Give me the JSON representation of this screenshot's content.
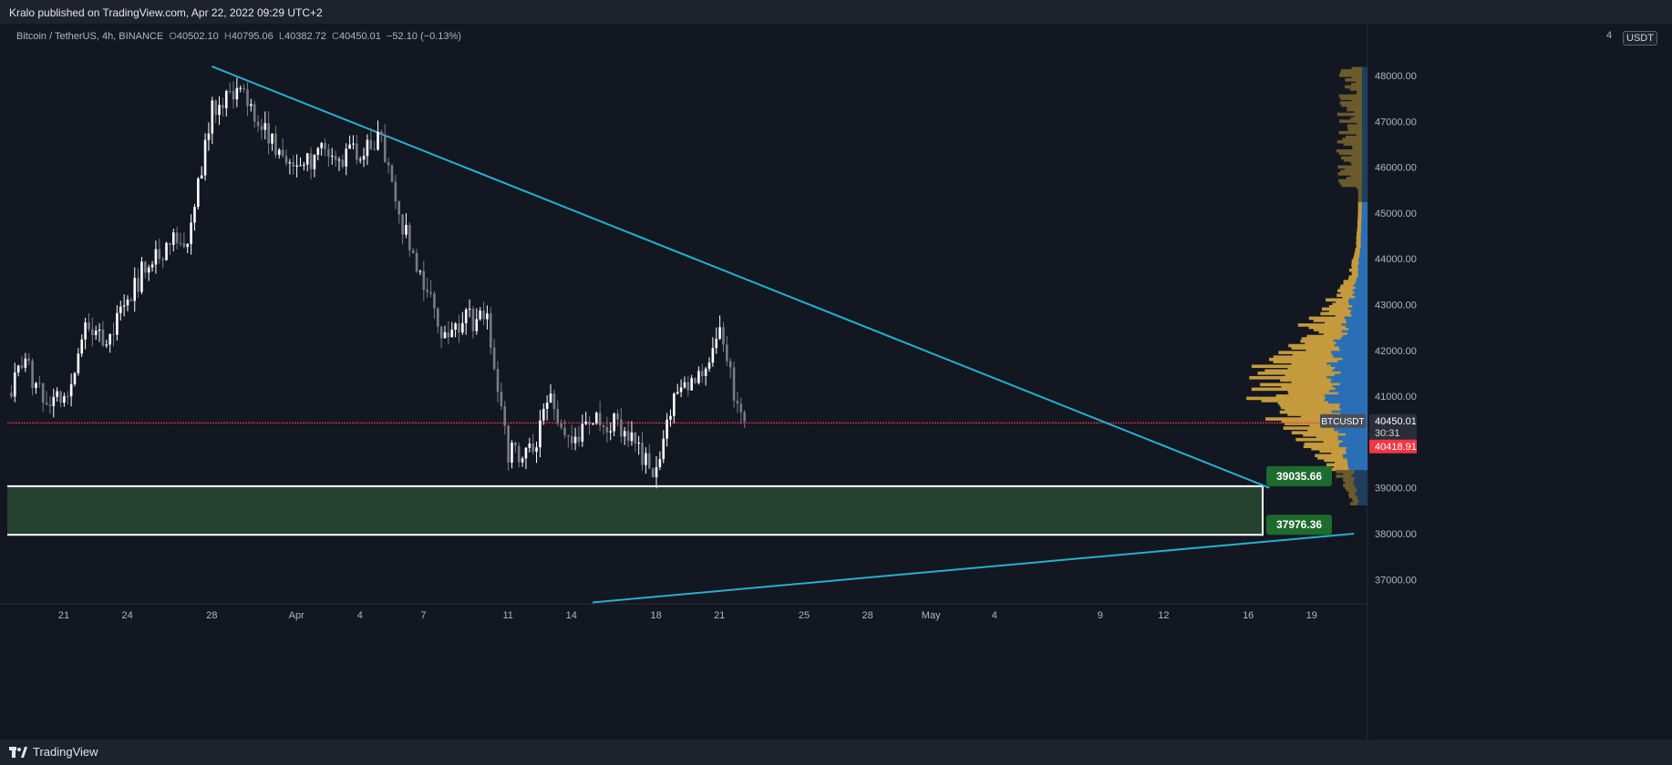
{
  "header": {
    "published": "Kralo published on TradingView.com, Apr 22, 2022 09:29 UTC+2"
  },
  "footer": {
    "brand": "TradingView",
    "brand_icon": "tradingview-logo-icon"
  },
  "legend": {
    "symbol": "Bitcoin / TetherUS, 4h, BINANCE",
    "open_label": "O",
    "open": "40502.10",
    "high_label": "H",
    "high": "40795.06",
    "low_label": "L",
    "low": "40382.72",
    "close_label": "C",
    "close": "40450.01",
    "change": "−52.10 (−0.13%)"
  },
  "price_axis": {
    "currency": "USDT",
    "top_partial": "4",
    "ticks": [
      "48000.00",
      "47000.00",
      "46000.00",
      "45000.00",
      "44000.00",
      "43000.00",
      "42000.00",
      "41000.00",
      "40000.00",
      "39000.00",
      "38000.00",
      "37000.00"
    ]
  },
  "time_axis": {
    "ticks": [
      "21",
      "24",
      "28",
      "Apr",
      "4",
      "7",
      "11",
      "14",
      "18",
      "21",
      "25",
      "28",
      "May",
      "4",
      "9",
      "12",
      "16",
      "19"
    ]
  },
  "labels": {
    "symbol_tag": "BTCUSDT",
    "last_price": "40450.01",
    "countdown": "30:31",
    "red_price": "40418.91",
    "zone_top": "39035.66",
    "zone_bottom": "37976.36"
  },
  "colors": {
    "background": "#131722",
    "candle_up": "#ffffff",
    "candle_down": "#787b86",
    "trendline": "#26b0d0",
    "support_line": "#f23645",
    "zone_fill": "#24422f",
    "zone_label": "#1e6b2e",
    "vp_up": "#c49a3c",
    "vp_down": "#2a6fb5"
  },
  "chart_data": {
    "type": "candlestick",
    "timeframe": "4h",
    "x_range": [
      "Mar 18 2022",
      "May 21 2022"
    ],
    "ylim": [
      36500,
      48500
    ],
    "price_path": [
      [
        "2022-03-18",
        40300
      ],
      [
        "2022-03-19",
        41800
      ],
      [
        "2022-03-20",
        41100
      ],
      [
        "2022-03-21",
        40800
      ],
      [
        "2022-03-22",
        42600
      ],
      [
        "2022-03-23",
        42300
      ],
      [
        "2022-03-24",
        43000
      ],
      [
        "2022-03-25",
        44000
      ],
      [
        "2022-03-26",
        44300
      ],
      [
        "2022-03-27",
        44600
      ],
      [
        "2022-03-28",
        47200
      ],
      [
        "2022-03-29",
        47700
      ],
      [
        "2022-03-30",
        47200
      ],
      [
        "2022-03-31",
        46500
      ],
      [
        "2022-04-01",
        45800
      ],
      [
        "2022-04-02",
        46300
      ],
      [
        "2022-04-03",
        46200
      ],
      [
        "2022-04-04",
        46400
      ],
      [
        "2022-04-05",
        46700
      ],
      [
        "2022-04-06",
        44800
      ],
      [
        "2022-04-07",
        43400
      ],
      [
        "2022-04-08",
        42300
      ],
      [
        "2022-04-09",
        42700
      ],
      [
        "2022-04-10",
        42600
      ],
      [
        "2022-04-11",
        39800
      ],
      [
        "2022-04-12",
        39700
      ],
      [
        "2022-04-13",
        40900
      ],
      [
        "2022-04-14",
        39900
      ],
      [
        "2022-04-15",
        40500
      ],
      [
        "2022-04-16",
        40400
      ],
      [
        "2022-04-17",
        40000
      ],
      [
        "2022-04-18",
        39200
      ],
      [
        "2022-04-19",
        41200
      ],
      [
        "2022-04-20",
        41500
      ],
      [
        "2022-04-21",
        42400
      ],
      [
        "2022-04-22",
        40450
      ]
    ],
    "last_close": 40450.01,
    "horizontal_line": 40418.91,
    "zone": [
      37976.36,
      39035.66
    ],
    "trendlines": [
      {
        "from": [
          "2022-03-28",
          48200
        ],
        "to": [
          "2022-05-17",
          39000
        ]
      },
      {
        "from": [
          "2022-04-15",
          36500
        ],
        "to": [
          "2022-05-21",
          38000
        ]
      }
    ]
  }
}
